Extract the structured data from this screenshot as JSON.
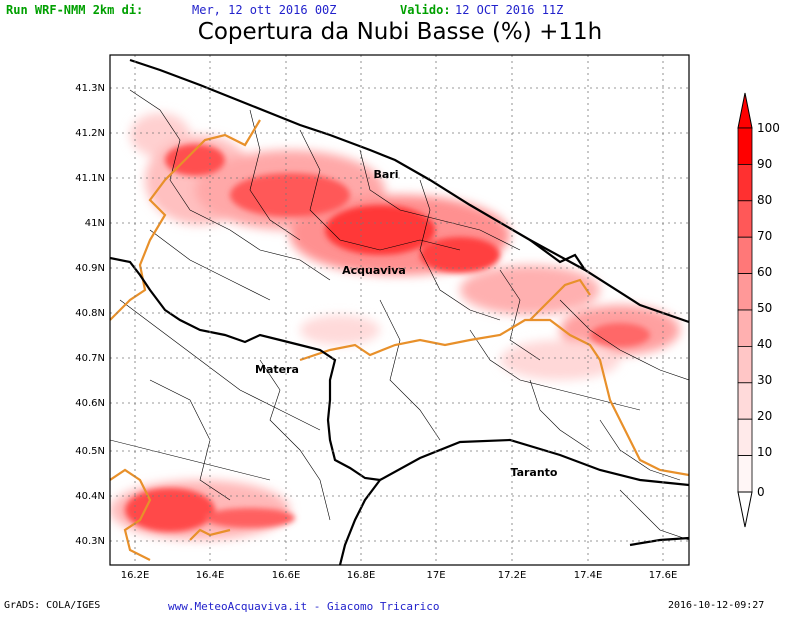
{
  "header": {
    "run_label": "Run WRF-NMM 2km di:",
    "run_value": "Mer, 12 ott 2016 00Z",
    "valid_label": "Valido:",
    "valid_value": "12 OCT 2016 11Z"
  },
  "title": "Copertura da Nubi Basse (%) +11h",
  "colors": {
    "green": "#00a000",
    "blue": "#2222cc",
    "ocean": "#ffffff",
    "border": "#e8902a"
  },
  "map": {
    "lat_labels": [
      "41.3N",
      "41.2N",
      "41.1N",
      "41N",
      "40.9N",
      "40.8N",
      "40.7N",
      "40.6N",
      "40.5N",
      "40.4N",
      "40.3N"
    ],
    "lon_labels": [
      "16.2E",
      "16.4E",
      "16.6E",
      "16.8E",
      "17E",
      "17.2E",
      "17.4E",
      "17.6E"
    ],
    "cities": [
      "Bari",
      "Acquaviva",
      "Matera",
      "Taranto"
    ]
  },
  "colorbar": {
    "levels": [
      "100",
      "90",
      "80",
      "70",
      "60",
      "50",
      "40",
      "30",
      "20",
      "10",
      "0"
    ],
    "fills": [
      "#ff0000",
      "#ff3030",
      "#ff5858",
      "#ff7878",
      "#ff9898",
      "#ffb0b0",
      "#ffc6c6",
      "#ffdada",
      "#ffeaea",
      "#fff6f6"
    ]
  },
  "footer": {
    "grads": "GrADS: COLA/IGES",
    "site": "www.MeteoAcquaviva.it  -  Giacomo Tricarico",
    "timestamp": "2016-10-12-09:27"
  }
}
